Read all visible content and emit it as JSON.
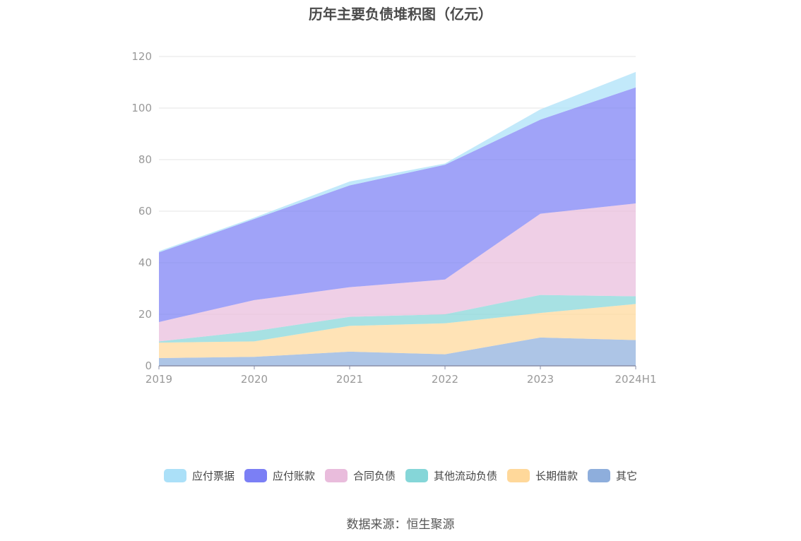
{
  "chart_data": {
    "type": "area",
    "stacked": true,
    "title": "历年主要负债堆积图（亿元）",
    "categories": [
      "2019",
      "2020",
      "2021",
      "2022",
      "2023",
      "2024H1"
    ],
    "ylim": [
      0,
      120
    ],
    "yticks": [
      0,
      20,
      40,
      60,
      80,
      100,
      120
    ],
    "grid": true,
    "legend_position": "bottom",
    "series": [
      {
        "name": "其它",
        "color": "#8eaedc",
        "values": [
          3,
          3.5,
          5.5,
          4.5,
          11,
          10
        ]
      },
      {
        "name": "长期借款",
        "color": "#ffd89a",
        "values": [
          6,
          6,
          10,
          12,
          9.5,
          14
        ]
      },
      {
        "name": "其他流动负债",
        "color": "#85d6d8",
        "values": [
          0.5,
          4,
          3.5,
          3.5,
          7,
          3
        ]
      },
      {
        "name": "合同负债",
        "color": "#e9bcdc",
        "values": [
          7.5,
          12,
          11.5,
          13.5,
          31.5,
          36
        ]
      },
      {
        "name": "应付账款",
        "color": "#7b7ff5",
        "values": [
          27,
          31.5,
          39.5,
          44.5,
          36.5,
          45
        ]
      },
      {
        "name": "应付票据",
        "color": "#abe0f8",
        "values": [
          0.5,
          0.5,
          1.5,
          0.5,
          4,
          6
        ]
      }
    ],
    "legend_order": [
      "应付票据",
      "应付账款",
      "合同负债",
      "其他流动负债",
      "长期借款",
      "其它"
    ]
  },
  "source": "数据来源：恒生聚源"
}
